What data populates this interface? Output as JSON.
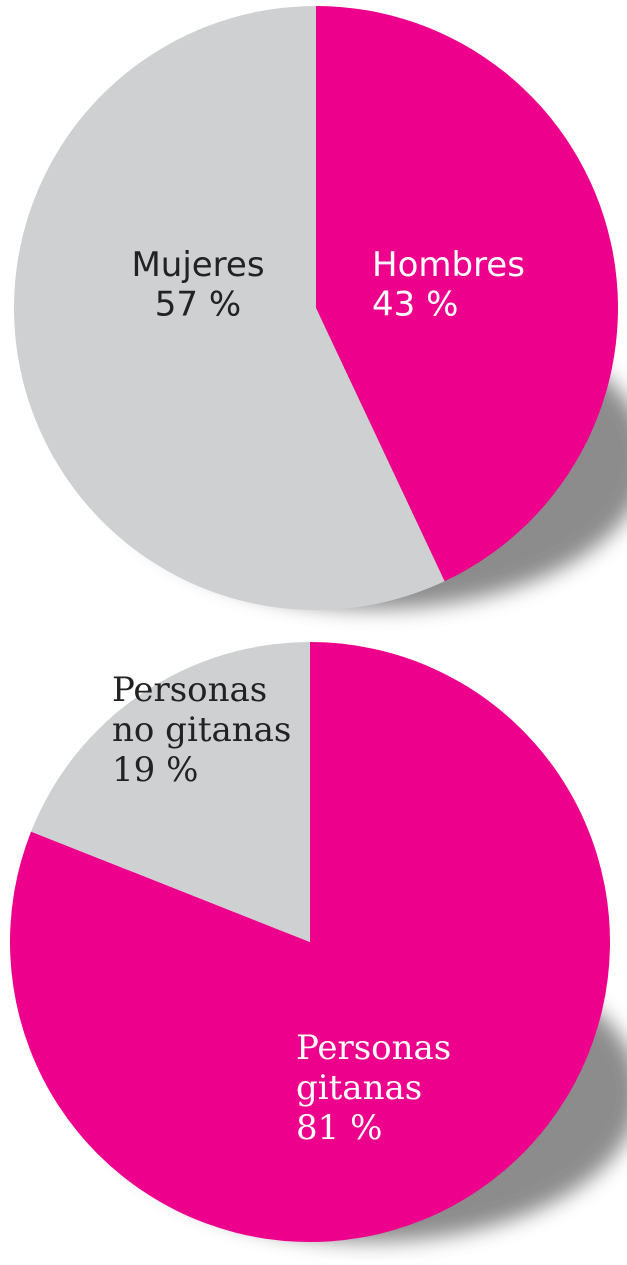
{
  "chart_data": [
    {
      "type": "pie",
      "categories": [
        "Hombres",
        "Mujeres"
      ],
      "values": [
        43,
        57
      ],
      "value_labels": [
        "43 %",
        "57 %"
      ],
      "colors": [
        "#ec008c",
        "#cfd0d2"
      ]
    },
    {
      "type": "pie",
      "categories": [
        "Personas\ngitanas",
        "Personas\nno gitanas"
      ],
      "values": [
        81,
        19
      ],
      "value_labels": [
        "81 %",
        "19 %"
      ],
      "colors": [
        "#ec008c",
        "#cfd0d2"
      ]
    }
  ]
}
